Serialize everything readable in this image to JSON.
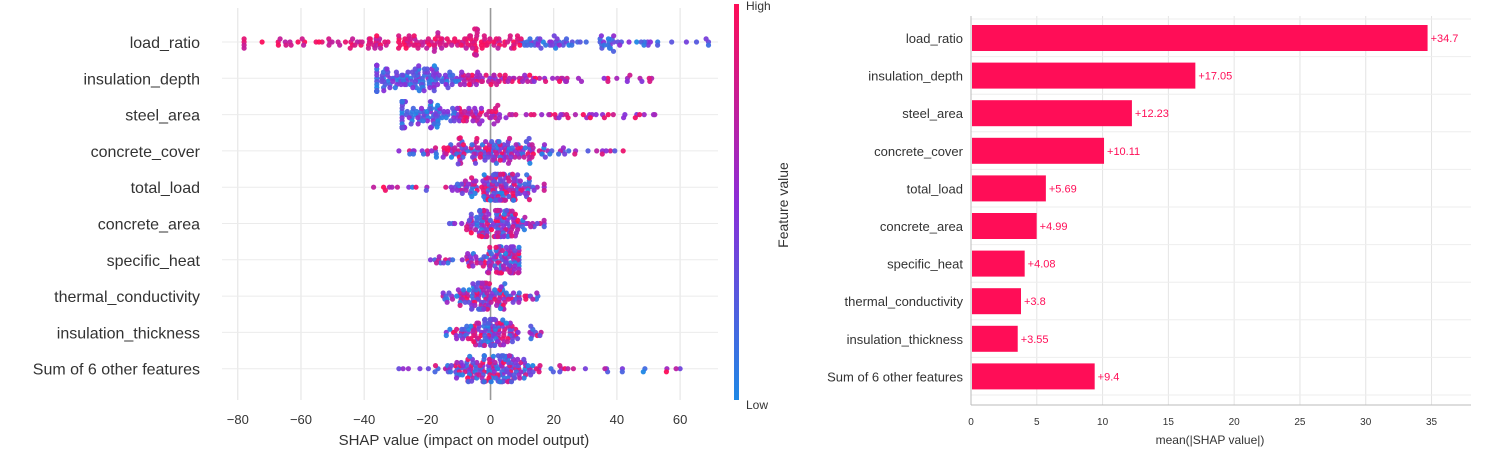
{
  "chart_data": [
    {
      "type": "scatter",
      "subtype": "shap-beeswarm",
      "features": [
        "load_ratio",
        "insulation_depth",
        "steel_area",
        "concrete_cover",
        "total_load",
        "concrete_area",
        "specific_heat",
        "thermal_conductivity",
        "insulation_thickness",
        "Sum of 6 other features"
      ],
      "distributions": [
        {
          "min": -78,
          "max": 69,
          "center": -2,
          "spread": 30,
          "n": 240
        },
        {
          "min": -36,
          "max": 51,
          "center": -18,
          "spread": 16,
          "n": 220
        },
        {
          "min": -28,
          "max": 52,
          "center": -18,
          "spread": 14,
          "n": 200
        },
        {
          "min": -29,
          "max": 42,
          "center": 0,
          "spread": 11,
          "n": 170
        },
        {
          "min": -37,
          "max": 17,
          "center": 3,
          "spread": 7,
          "n": 160
        },
        {
          "min": -13,
          "max": 17,
          "center": 2,
          "spread": 5,
          "n": 140
        },
        {
          "min": -19,
          "max": 9,
          "center": 3,
          "spread": 4,
          "n": 120
        },
        {
          "min": -15,
          "max": 15,
          "center": -2,
          "spread": 5,
          "n": 130
        },
        {
          "min": -14,
          "max": 16,
          "center": 0,
          "spread": 5,
          "n": 130
        },
        {
          "min": -29,
          "max": 60,
          "center": 0,
          "spread": 8,
          "n": 190
        }
      ],
      "x_ticks": [
        "−80",
        "−60",
        "−40",
        "−20",
        "0",
        "20",
        "40",
        "60"
      ],
      "x_tick_values": [
        -80,
        -60,
        -40,
        -20,
        0,
        20,
        40,
        60
      ],
      "xlim": [
        -85,
        72
      ],
      "xlabel": "SHAP value (impact on model output)",
      "colorbar": {
        "label": "Feature value",
        "high": "High",
        "low": "Low"
      },
      "colors": {
        "high": "#ff0d57",
        "low": "#1e88e5",
        "mid": "#8b2ed8"
      }
    },
    {
      "type": "bar",
      "orientation": "horizontal",
      "categories": [
        "load_ratio",
        "insulation_depth",
        "steel_area",
        "concrete_cover",
        "total_load",
        "concrete_area",
        "specific_heat",
        "thermal_conductivity",
        "insulation_thickness",
        "Sum of 6 other features"
      ],
      "values": [
        34.7,
        17.05,
        12.23,
        10.11,
        5.69,
        4.99,
        4.08,
        3.8,
        3.55,
        9.4
      ],
      "value_labels": [
        "+34.7",
        "+17.05",
        "+12.23",
        "+10.11",
        "+5.69",
        "+4.99",
        "+4.08",
        "+3.8",
        "+3.55",
        "+9.4"
      ],
      "x_ticks": [
        "0",
        "5",
        "10",
        "15",
        "20",
        "25",
        "30",
        "35"
      ],
      "x_tick_values": [
        0,
        5,
        10,
        15,
        20,
        25,
        30,
        35
      ],
      "xlim": [
        0,
        38
      ],
      "xlabel": "mean(|SHAP value|)",
      "colors": {
        "bar": "#ff0d57",
        "label": "#ff0d57"
      }
    }
  ]
}
